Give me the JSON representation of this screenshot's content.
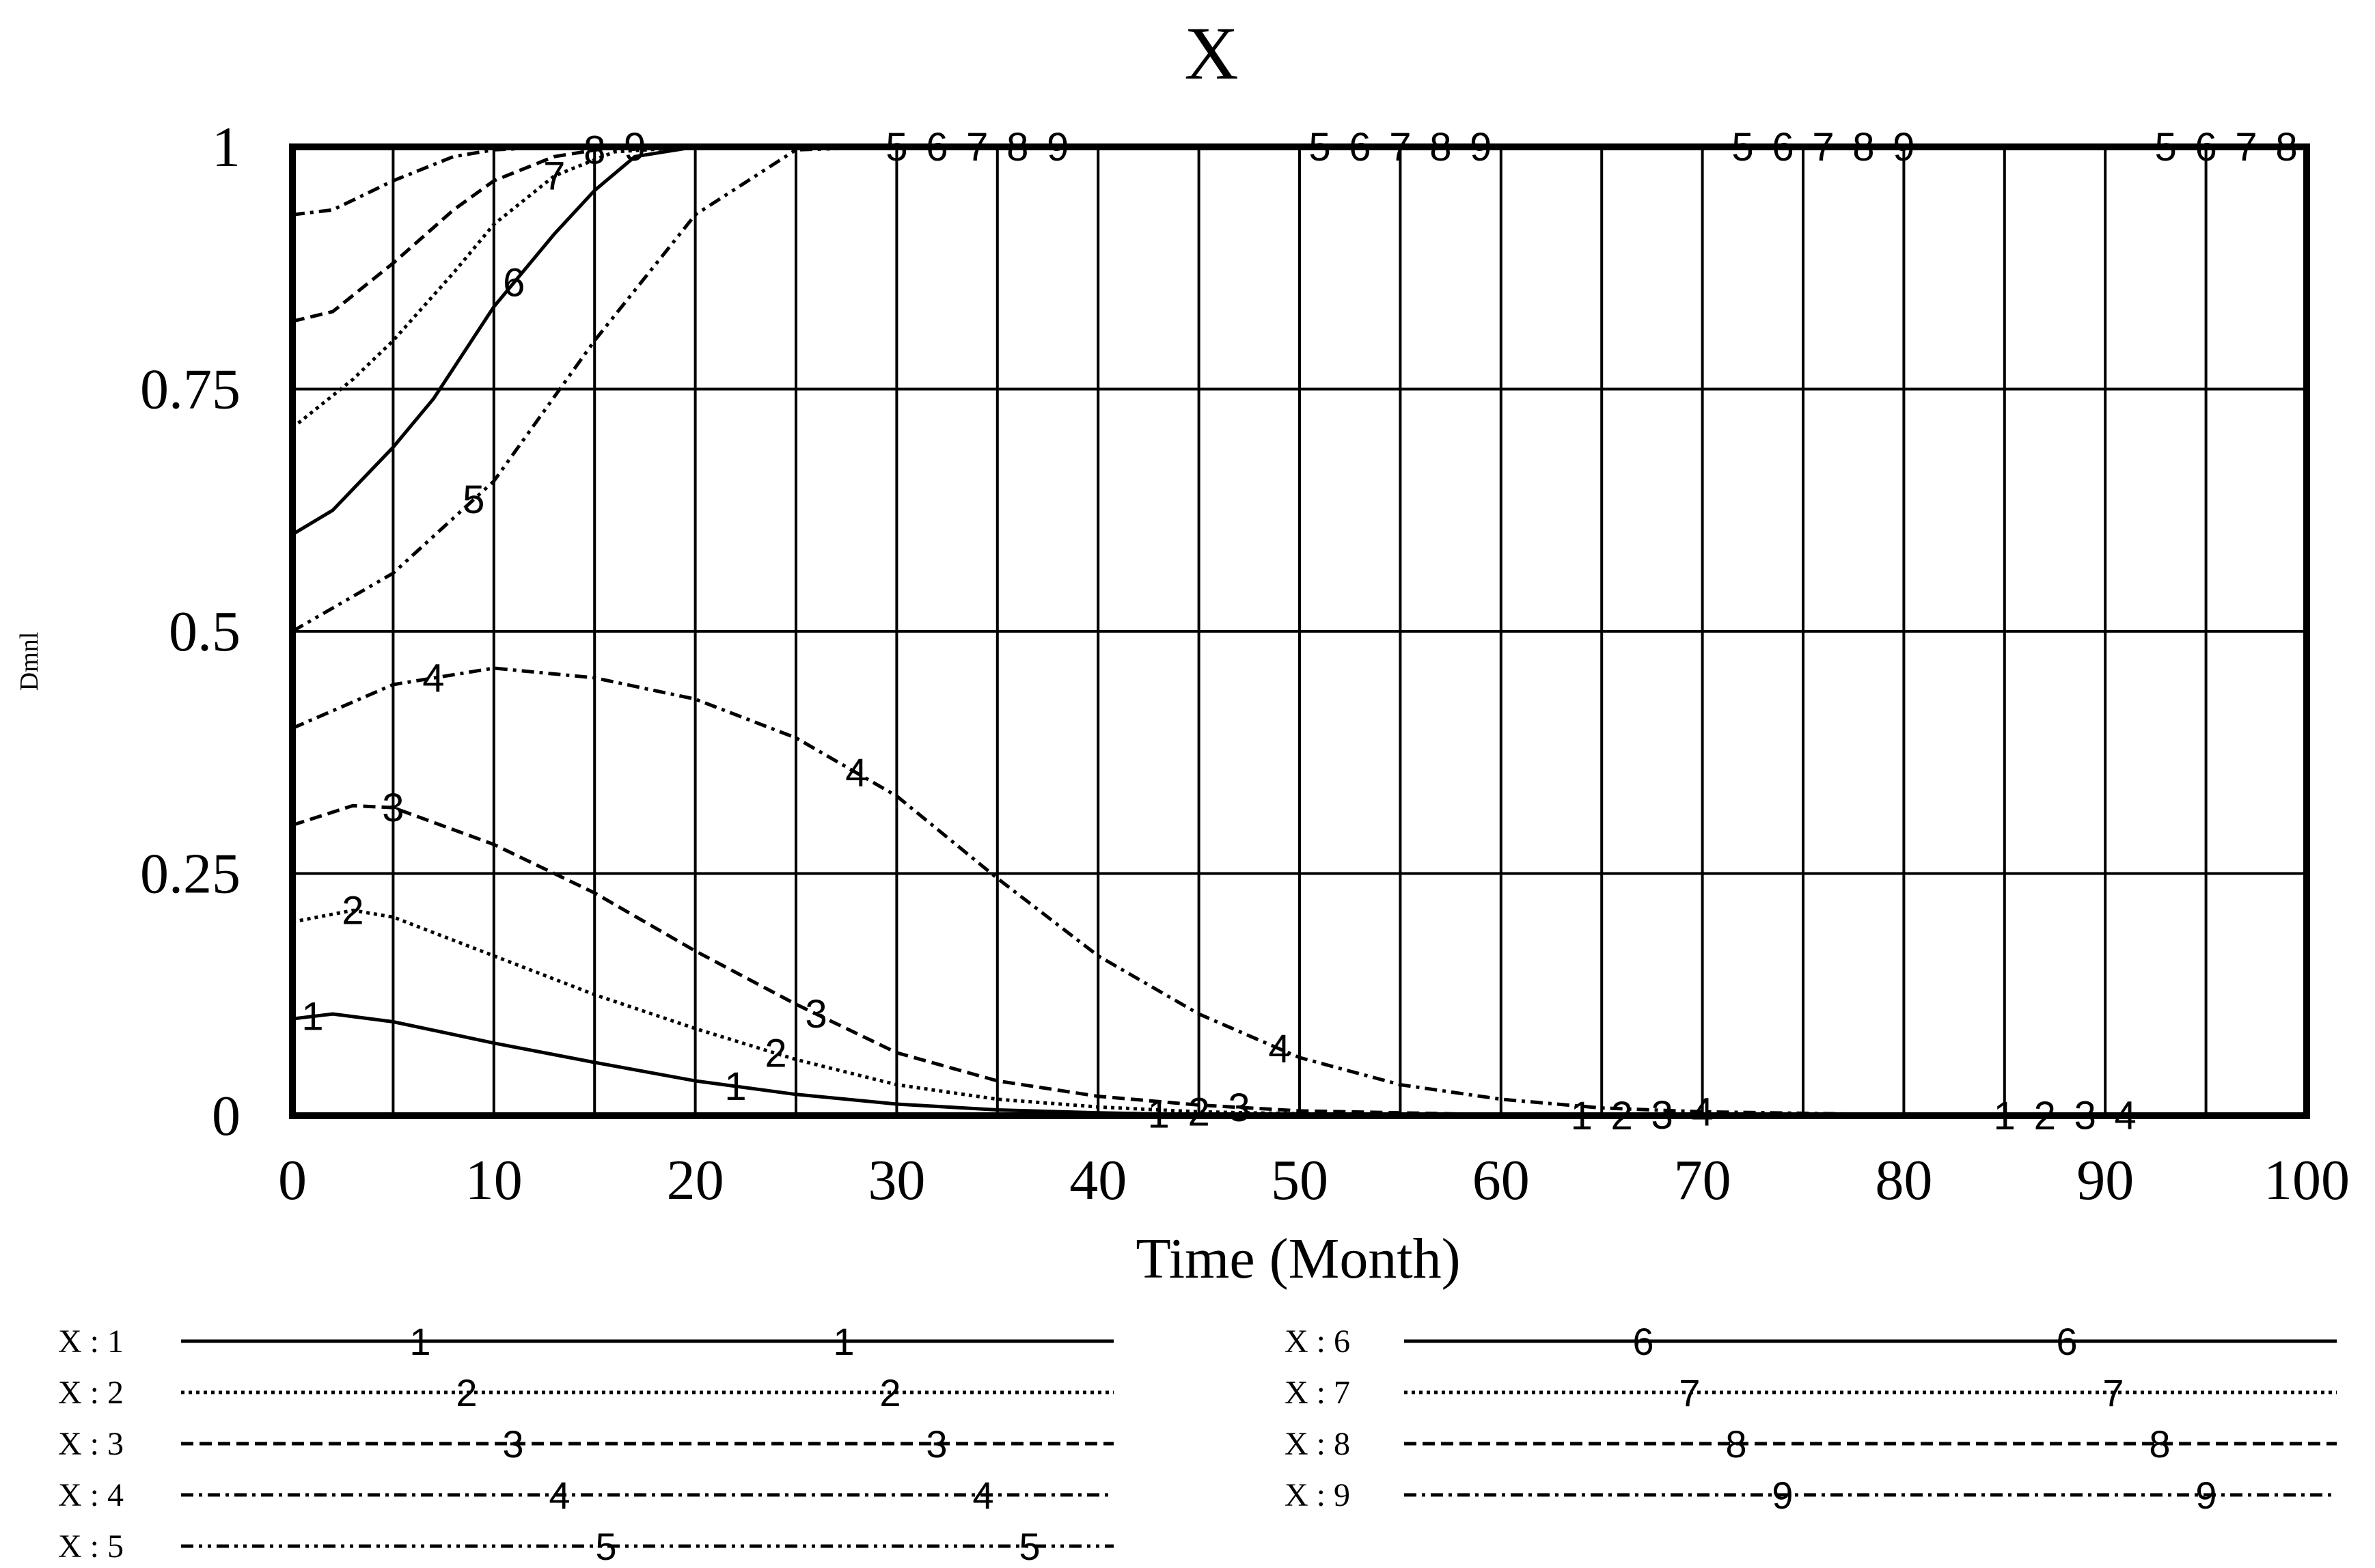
{
  "chart_data": {
    "type": "line",
    "title": "X",
    "xlabel": "Time (Month)",
    "ylabel": "Dmnl",
    "xlim": [
      0,
      100
    ],
    "ylim": [
      0,
      1
    ],
    "x_ticks": [
      "0",
      "10",
      "20",
      "30",
      "40",
      "50",
      "60",
      "70",
      "80",
      "90",
      "100"
    ],
    "y_ticks": [
      "0",
      "0.25",
      "0.5",
      "0.75",
      "1"
    ],
    "grid": true,
    "legend_position": "bottom",
    "series": [
      {
        "name": "X : 1",
        "marker": "1",
        "dash": "solid",
        "points": [
          [
            0,
            0.1
          ],
          [
            2,
            0.105
          ],
          [
            5,
            0.097
          ],
          [
            10,
            0.075
          ],
          [
            15,
            0.055
          ],
          [
            20,
            0.036
          ],
          [
            25,
            0.022
          ],
          [
            30,
            0.012
          ],
          [
            35,
            0.006
          ],
          [
            40,
            0.003
          ],
          [
            45,
            0.001
          ],
          [
            50,
            0.0005
          ],
          [
            60,
            0
          ],
          [
            100,
            0
          ]
        ]
      },
      {
        "name": "X : 2",
        "marker": "2",
        "dash": "dotted",
        "points": [
          [
            0,
            0.2
          ],
          [
            3,
            0.212
          ],
          [
            5,
            0.205
          ],
          [
            10,
            0.165
          ],
          [
            15,
            0.125
          ],
          [
            20,
            0.09
          ],
          [
            25,
            0.058
          ],
          [
            30,
            0.032
          ],
          [
            35,
            0.017
          ],
          [
            40,
            0.009
          ],
          [
            45,
            0.004
          ],
          [
            50,
            0.002
          ],
          [
            60,
            0
          ],
          [
            100,
            0
          ]
        ]
      },
      {
        "name": "X : 3",
        "marker": "3",
        "dash": "dashed",
        "points": [
          [
            0,
            0.3
          ],
          [
            3,
            0.32
          ],
          [
            5,
            0.318
          ],
          [
            10,
            0.28
          ],
          [
            15,
            0.23
          ],
          [
            20,
            0.17
          ],
          [
            25,
            0.115
          ],
          [
            30,
            0.065
          ],
          [
            35,
            0.036
          ],
          [
            40,
            0.02
          ],
          [
            45,
            0.011
          ],
          [
            50,
            0.005
          ],
          [
            60,
            0.001
          ],
          [
            100,
            0
          ]
        ]
      },
      {
        "name": "X : 4",
        "marker": "4",
        "dash": "dashdot",
        "points": [
          [
            0,
            0.4
          ],
          [
            5,
            0.445
          ],
          [
            10,
            0.462
          ],
          [
            15,
            0.452
          ],
          [
            20,
            0.43
          ],
          [
            25,
            0.39
          ],
          [
            30,
            0.33
          ],
          [
            35,
            0.245
          ],
          [
            40,
            0.165
          ],
          [
            45,
            0.105
          ],
          [
            50,
            0.06
          ],
          [
            55,
            0.032
          ],
          [
            60,
            0.017
          ],
          [
            65,
            0.008
          ],
          [
            70,
            0.004
          ],
          [
            80,
            0.001
          ],
          [
            100,
            0
          ]
        ]
      },
      {
        "name": "X : 5",
        "marker": "5",
        "dash": "dashdotdot",
        "points": [
          [
            0,
            0.5
          ],
          [
            5,
            0.56
          ],
          [
            10,
            0.655
          ],
          [
            15,
            0.8
          ],
          [
            20,
            0.93
          ],
          [
            25,
            0.997
          ],
          [
            30,
            1
          ],
          [
            100,
            1
          ]
        ]
      },
      {
        "name": "X : 6",
        "marker": "6",
        "dash": "solid",
        "points": [
          [
            0,
            0.6
          ],
          [
            2,
            0.625
          ],
          [
            5,
            0.69
          ],
          [
            7,
            0.74
          ],
          [
            10,
            0.835
          ],
          [
            13,
            0.91
          ],
          [
            15,
            0.955
          ],
          [
            17,
            0.99
          ],
          [
            20,
            1
          ],
          [
            100,
            1
          ]
        ]
      },
      {
        "name": "X : 7",
        "marker": "7",
        "dash": "dotted",
        "points": [
          [
            0,
            0.71
          ],
          [
            3,
            0.76
          ],
          [
            5,
            0.8
          ],
          [
            8,
            0.87
          ],
          [
            10,
            0.92
          ],
          [
            13,
            0.97
          ],
          [
            16,
            0.995
          ],
          [
            20,
            1
          ],
          [
            100,
            1
          ]
        ]
      },
      {
        "name": "X : 8",
        "marker": "8",
        "dash": "dashed",
        "points": [
          [
            0,
            0.82
          ],
          [
            2,
            0.83
          ],
          [
            5,
            0.88
          ],
          [
            8,
            0.935
          ],
          [
            10,
            0.965
          ],
          [
            13,
            0.99
          ],
          [
            16,
            1
          ],
          [
            100,
            1
          ]
        ]
      },
      {
        "name": "X : 9",
        "marker": "9",
        "dash": "dashdot",
        "points": [
          [
            0,
            0.93
          ],
          [
            2,
            0.935
          ],
          [
            5,
            0.965
          ],
          [
            8,
            0.99
          ],
          [
            10,
            0.997
          ],
          [
            13,
            1
          ],
          [
            100,
            1
          ]
        ]
      }
    ]
  }
}
